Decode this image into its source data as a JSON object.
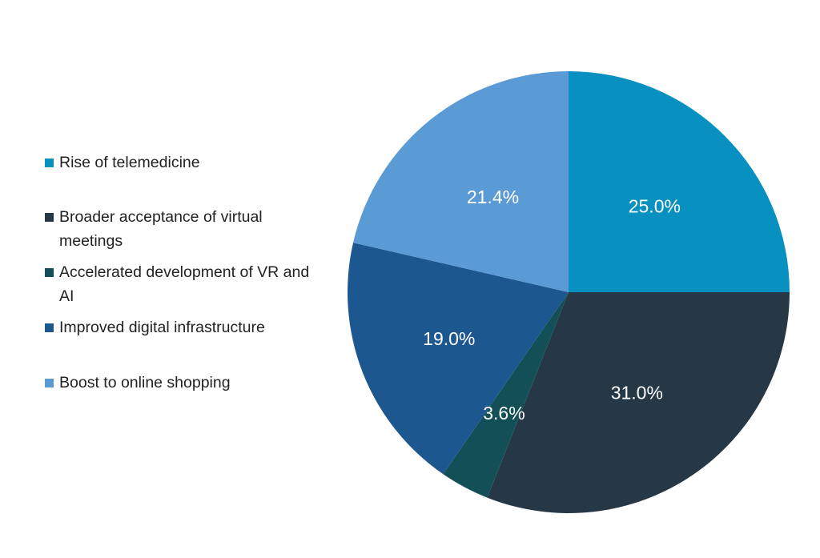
{
  "chart_data": {
    "type": "pie",
    "title": "",
    "legend_position": "left",
    "slices": [
      {
        "label": "Rise of telemedicine",
        "value": 25.0,
        "display": "25.0%",
        "color": "#0890c0"
      },
      {
        "label": "Broader acceptance of virtual meetings",
        "value": 31.0,
        "display": "31.0%",
        "color": "#263746"
      },
      {
        "label": "Accelerated development of VR and AI",
        "value": 3.6,
        "display": "3.6%",
        "color": "#124f57"
      },
      {
        "label": "Improved digital infrastructure",
        "value": 19.0,
        "display": "19.0%",
        "color": "#1d5790"
      },
      {
        "label": "Boost to online shopping",
        "value": 21.4,
        "display": "21.4%",
        "color": "#5b9bd5"
      }
    ]
  }
}
